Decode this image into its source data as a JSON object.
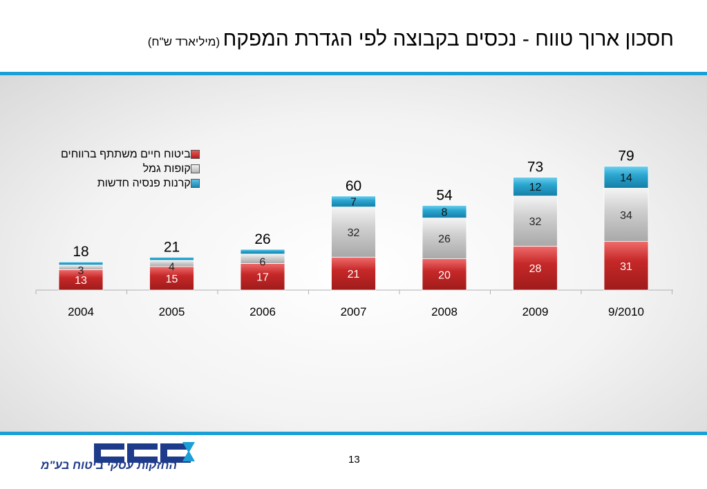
{
  "title": {
    "main": "חסכון ארוך טווח - נכסים בקבוצה לפי הגדרת המפקח",
    "unit": "(מיליארד ש\"ח)"
  },
  "page_number": "13",
  "logo": {
    "text": "כלל",
    "tagline": "החזקות עסקי ביטוח בע\"מ",
    "colors": {
      "primary": "#1e3a8a",
      "accent": "#1a9fd6"
    }
  },
  "colors": {
    "rule": "#1a9fd6"
  },
  "chart_data": {
    "type": "bar",
    "stacked": true,
    "categories": [
      "2004",
      "2005",
      "2006",
      "2007",
      "2008",
      "2009",
      "9/2010"
    ],
    "series": [
      {
        "name": "ביטוח חיים משתתף ברווחים",
        "values": [
          13,
          15,
          17,
          21,
          20,
          28,
          31
        ],
        "color": "#d32f2f"
      },
      {
        "name": "קופות גמל",
        "values": [
          3,
          4,
          6,
          32,
          26,
          32,
          34
        ],
        "color": "#d2d2d2"
      },
      {
        "name": "קרנות פנסיה חדשות",
        "values": [
          2,
          2,
          3,
          7,
          8,
          12,
          14
        ],
        "color": "#2aa6d0"
      }
    ],
    "segment_labels": [
      [
        "13",
        "3",
        ""
      ],
      [
        "15",
        "4",
        ""
      ],
      [
        "17",
        "6",
        ""
      ],
      [
        "21",
        "32",
        "7"
      ],
      [
        "20",
        "26",
        "8"
      ],
      [
        "28",
        "32",
        "12"
      ],
      [
        "31",
        "34",
        "14"
      ]
    ],
    "totals": [
      "18",
      "21",
      "26",
      "60",
      "54",
      "73",
      "79"
    ],
    "legend_position": "top-left",
    "grid": false,
    "ylim": [
      0,
      100
    ]
  }
}
